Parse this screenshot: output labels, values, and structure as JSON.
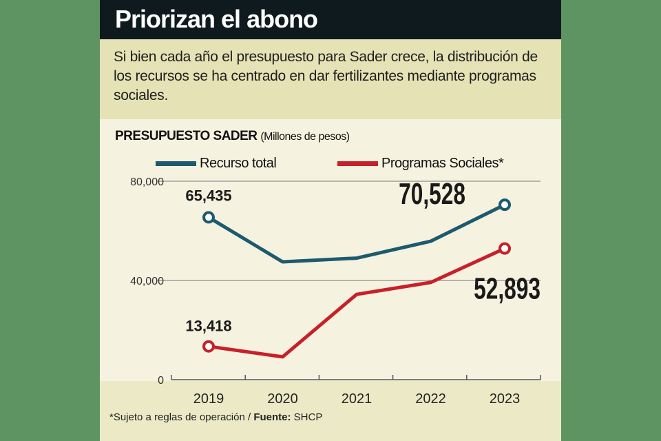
{
  "title": "Priorizan el abono",
  "description": "Si bien cada año el presupuesto para Sader crece, la distribución de los recursos se ha centrado en dar fertilizantes mediante programas sociales.",
  "footer": {
    "note": "*Sujeto a reglas de operación / ",
    "source_label": "Fuente:",
    "source": " SHCP"
  },
  "chart_data": {
    "type": "line",
    "title": "PRESUPUESTO SADER",
    "subtitle": "(Millones de pesos)",
    "xlabel": "",
    "ylabel": "",
    "categories": [
      "2019",
      "2020",
      "2021",
      "2022",
      "2023"
    ],
    "ylim": [
      0,
      80000
    ],
    "yticks": [
      0,
      40000,
      80000
    ],
    "ytick_labels": [
      "0",
      "40,000",
      "80,000"
    ],
    "grid": true,
    "legend_position": "top",
    "series": [
      {
        "name": "Recurso total",
        "color": "#1d5a6e",
        "values": [
          65435,
          47500,
          49000,
          55800,
          70528
        ]
      },
      {
        "name": "Programas Sociales*",
        "color": "#c8202a",
        "values": [
          13418,
          9200,
          34400,
          39200,
          52893
        ]
      }
    ],
    "annotations": [
      {
        "series": 0,
        "index": 0,
        "text": "65,435"
      },
      {
        "series": 0,
        "index": 4,
        "text": "70,528"
      },
      {
        "series": 1,
        "index": 0,
        "text": "13,418"
      },
      {
        "series": 1,
        "index": 4,
        "text": "52,893"
      }
    ]
  }
}
